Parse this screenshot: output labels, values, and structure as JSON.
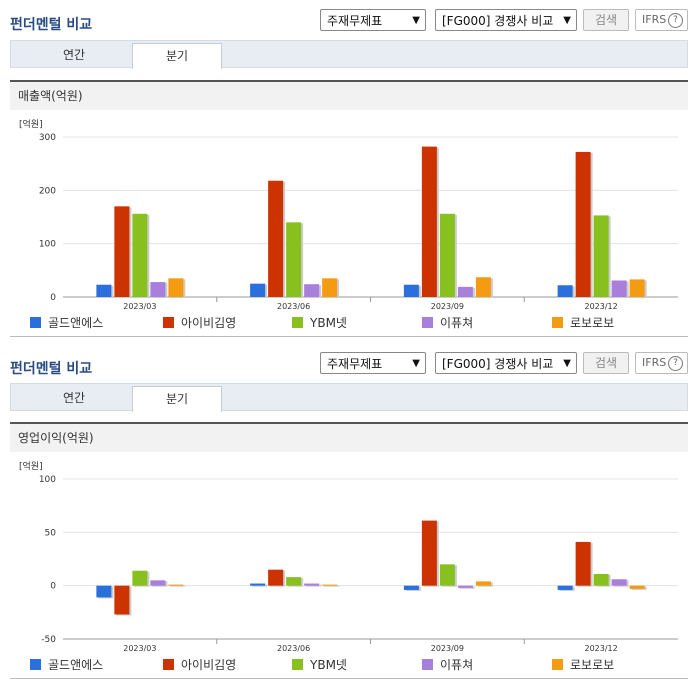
{
  "panels": [
    {
      "title": "펀더멘털 비교",
      "select_statement": "주재무제표",
      "select_compare": "[FG000] 경쟁사 비교",
      "search_label": "검색",
      "ifrs_label": "IFRS",
      "help_glyph": "?",
      "tabs": [
        "연간",
        "분기"
      ],
      "active_tab": "분기",
      "section_title": "매출액(억원)",
      "unit_label": "[억원]"
    },
    {
      "title": "펀더멘털 비교",
      "select_statement": "주재무제표",
      "select_compare": "[FG000] 경쟁사 비교",
      "search_label": "검색",
      "ifrs_label": "IFRS",
      "help_glyph": "?",
      "tabs": [
        "연간",
        "분기"
      ],
      "active_tab": "분기",
      "section_title": "영업이익(억원)",
      "unit_label": "[억원]"
    }
  ],
  "legend": [
    {
      "name": "골드앤에스",
      "color": "#2a6fdb"
    },
    {
      "name": "아이비김영",
      "color": "#cc3300"
    },
    {
      "name": "YBM넷",
      "color": "#88c020"
    },
    {
      "name": "이퓨쳐",
      "color": "#a97fdc"
    },
    {
      "name": "로보로보",
      "color": "#f59b12"
    }
  ],
  "chart_data": [
    {
      "type": "bar",
      "categories": [
        "2023/03",
        "2023/06",
        "2023/09",
        "2023/12"
      ],
      "ylabel": "[억원]",
      "ylim": [
        0,
        300
      ],
      "yticks": [
        0,
        100,
        200,
        300
      ],
      "series": [
        {
          "name": "골드앤에스",
          "values": [
            23,
            25,
            23,
            22
          ]
        },
        {
          "name": "아이비김영",
          "values": [
            170,
            218,
            282,
            272
          ]
        },
        {
          "name": "YBM넷",
          "values": [
            156,
            140,
            156,
            153
          ]
        },
        {
          "name": "이퓨쳐",
          "values": [
            28,
            24,
            19,
            31
          ]
        },
        {
          "name": "로보로보",
          "values": [
            35,
            35,
            37,
            33
          ]
        }
      ]
    },
    {
      "type": "bar",
      "categories": [
        "2023/03",
        "2023/06",
        "2023/09",
        "2023/12"
      ],
      "ylabel": "[억원]",
      "ylim": [
        -50,
        100
      ],
      "yticks": [
        -50,
        0,
        50,
        100
      ],
      "series": [
        {
          "name": "골드앤에스",
          "values": [
            -11,
            2,
            -4,
            -4
          ]
        },
        {
          "name": "아이비김영",
          "values": [
            -27,
            15,
            61,
            41
          ]
        },
        {
          "name": "YBM넷",
          "values": [
            14,
            8,
            20,
            11
          ]
        },
        {
          "name": "이퓨쳐",
          "values": [
            5,
            2,
            -2,
            6
          ]
        },
        {
          "name": "로보로보",
          "values": [
            1,
            1,
            4,
            -3
          ]
        }
      ]
    }
  ]
}
